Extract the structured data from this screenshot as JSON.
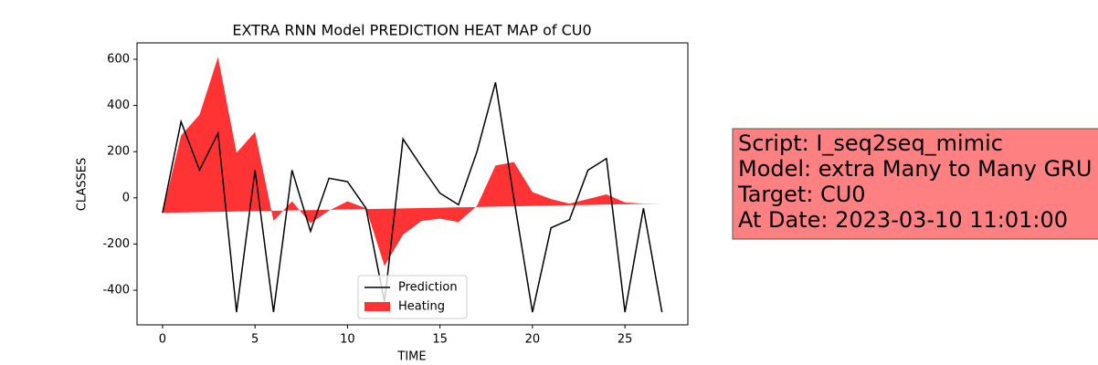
{
  "chart_data": {
    "type": "line",
    "title": "EXTRA RNN Model PREDICTION HEAT MAP of CU0",
    "x_label": "TIME",
    "y_label": "CLASSES",
    "x": [
      0,
      1,
      2,
      3,
      4,
      5,
      6,
      7,
      8,
      9,
      10,
      11,
      12,
      13,
      14,
      15,
      16,
      17,
      18,
      19,
      20,
      21,
      22,
      23,
      24,
      25,
      26,
      27
    ],
    "series": [
      {
        "name": "Prediction",
        "color": "#000000",
        "kind": "line",
        "values": [
          -65,
          330,
          120,
          280,
          -495,
          120,
          -495,
          120,
          -145,
          85,
          70,
          -45,
          -450,
          255,
          135,
          20,
          -30,
          200,
          500,
          -5,
          -495,
          -130,
          -95,
          120,
          170,
          -495,
          -45,
          -495
        ]
      },
      {
        "name": "Heating",
        "color": "#ff0000",
        "kind": "area",
        "values": [
          -65,
          270,
          360,
          610,
          195,
          285,
          -100,
          -15,
          -110,
          -55,
          -15,
          -45,
          -295,
          -160,
          -100,
          -90,
          -105,
          -35,
          140,
          155,
          25,
          -5,
          -25,
          -5,
          15,
          -20,
          -25,
          -25
        ],
        "baseline": [
          -65,
          -63.5,
          -62,
          -60.5,
          -59,
          -57.6,
          -56,
          -54.6,
          -53,
          -51.7,
          -50,
          -48.7,
          -47,
          -45.7,
          -44,
          -42.8,
          -41,
          -39.8,
          -38,
          -36.9,
          -35,
          -33.9,
          -32,
          -30.9,
          -29,
          -28,
          -26.5,
          -25
        ]
      }
    ],
    "xlim": [
      -1.38,
      28.4
    ],
    "ylim": [
      -550,
      671
    ],
    "xticks": [
      0,
      5,
      10,
      15,
      20,
      25
    ],
    "yticks": [
      -400,
      -200,
      0,
      200,
      400,
      600
    ],
    "legend": "lower center",
    "annotation": {
      "lines": [
        "Script: I_seq2seq_mimic",
        "Model: extra Many to Many GRU",
        "Target: CU0",
        "At Date: 2023-03-10 11:01:00"
      ],
      "color": "#ff8080"
    }
  }
}
